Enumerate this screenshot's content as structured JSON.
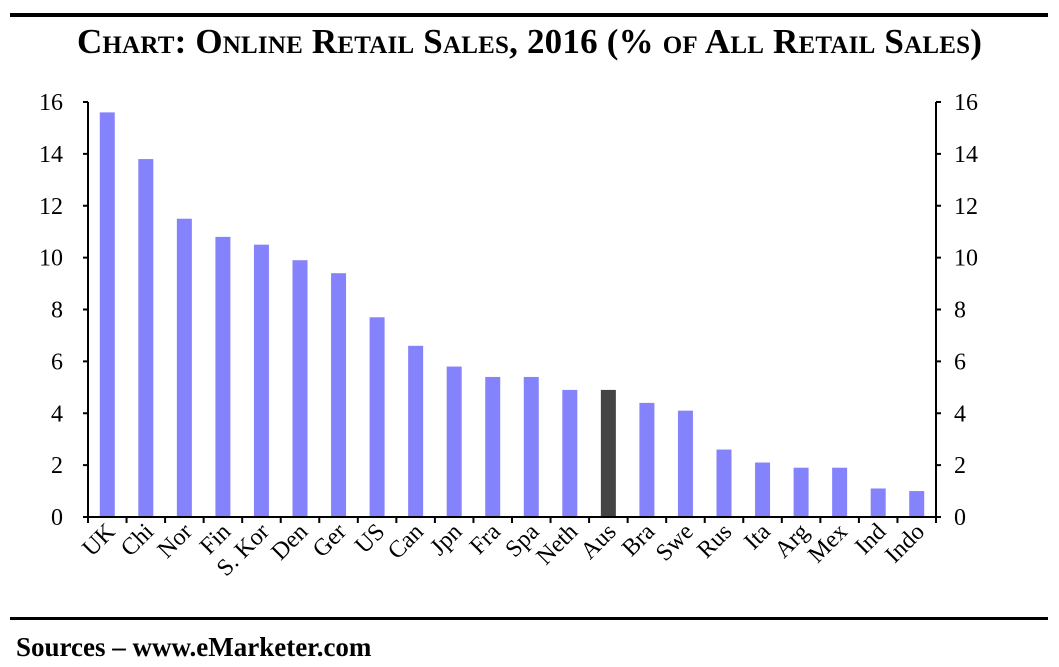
{
  "header": {
    "title": "Chart: Online Retail Sales, 2016 (% of All Retail Sales)"
  },
  "footer": {
    "source": "Sources – www.eMarketer.com"
  },
  "chart_data": {
    "type": "bar",
    "title": "Chart: Online Retail Sales, 2016 (% of All Retail Sales)",
    "xlabel": "",
    "ylabel": "",
    "categories": [
      "UK",
      "Chi",
      "Nor",
      "Fin",
      "S. Kor",
      "Den",
      "Ger",
      "US",
      "Can",
      "Jpn",
      "Fra",
      "Spa",
      "Neth",
      "Aus",
      "Bra",
      "Swe",
      "Rus",
      "Ita",
      "Arg",
      "Mex",
      "Ind",
      "Indo"
    ],
    "values": [
      15.6,
      13.8,
      11.5,
      10.8,
      10.5,
      9.9,
      9.4,
      7.7,
      6.6,
      5.8,
      5.4,
      5.4,
      4.9,
      4.9,
      4.4,
      4.1,
      2.6,
      2.1,
      1.9,
      1.9,
      1.1,
      1.0
    ],
    "highlight_category": "Aus",
    "ylim": [
      0,
      16
    ],
    "yticks": [
      0,
      2,
      4,
      6,
      8,
      10,
      12,
      14,
      16
    ],
    "y_axis_both_sides": true,
    "grid": false,
    "legend": "none",
    "colors": {
      "bar": "#8583fc",
      "highlight": "#444444",
      "axis": "#000000"
    }
  }
}
